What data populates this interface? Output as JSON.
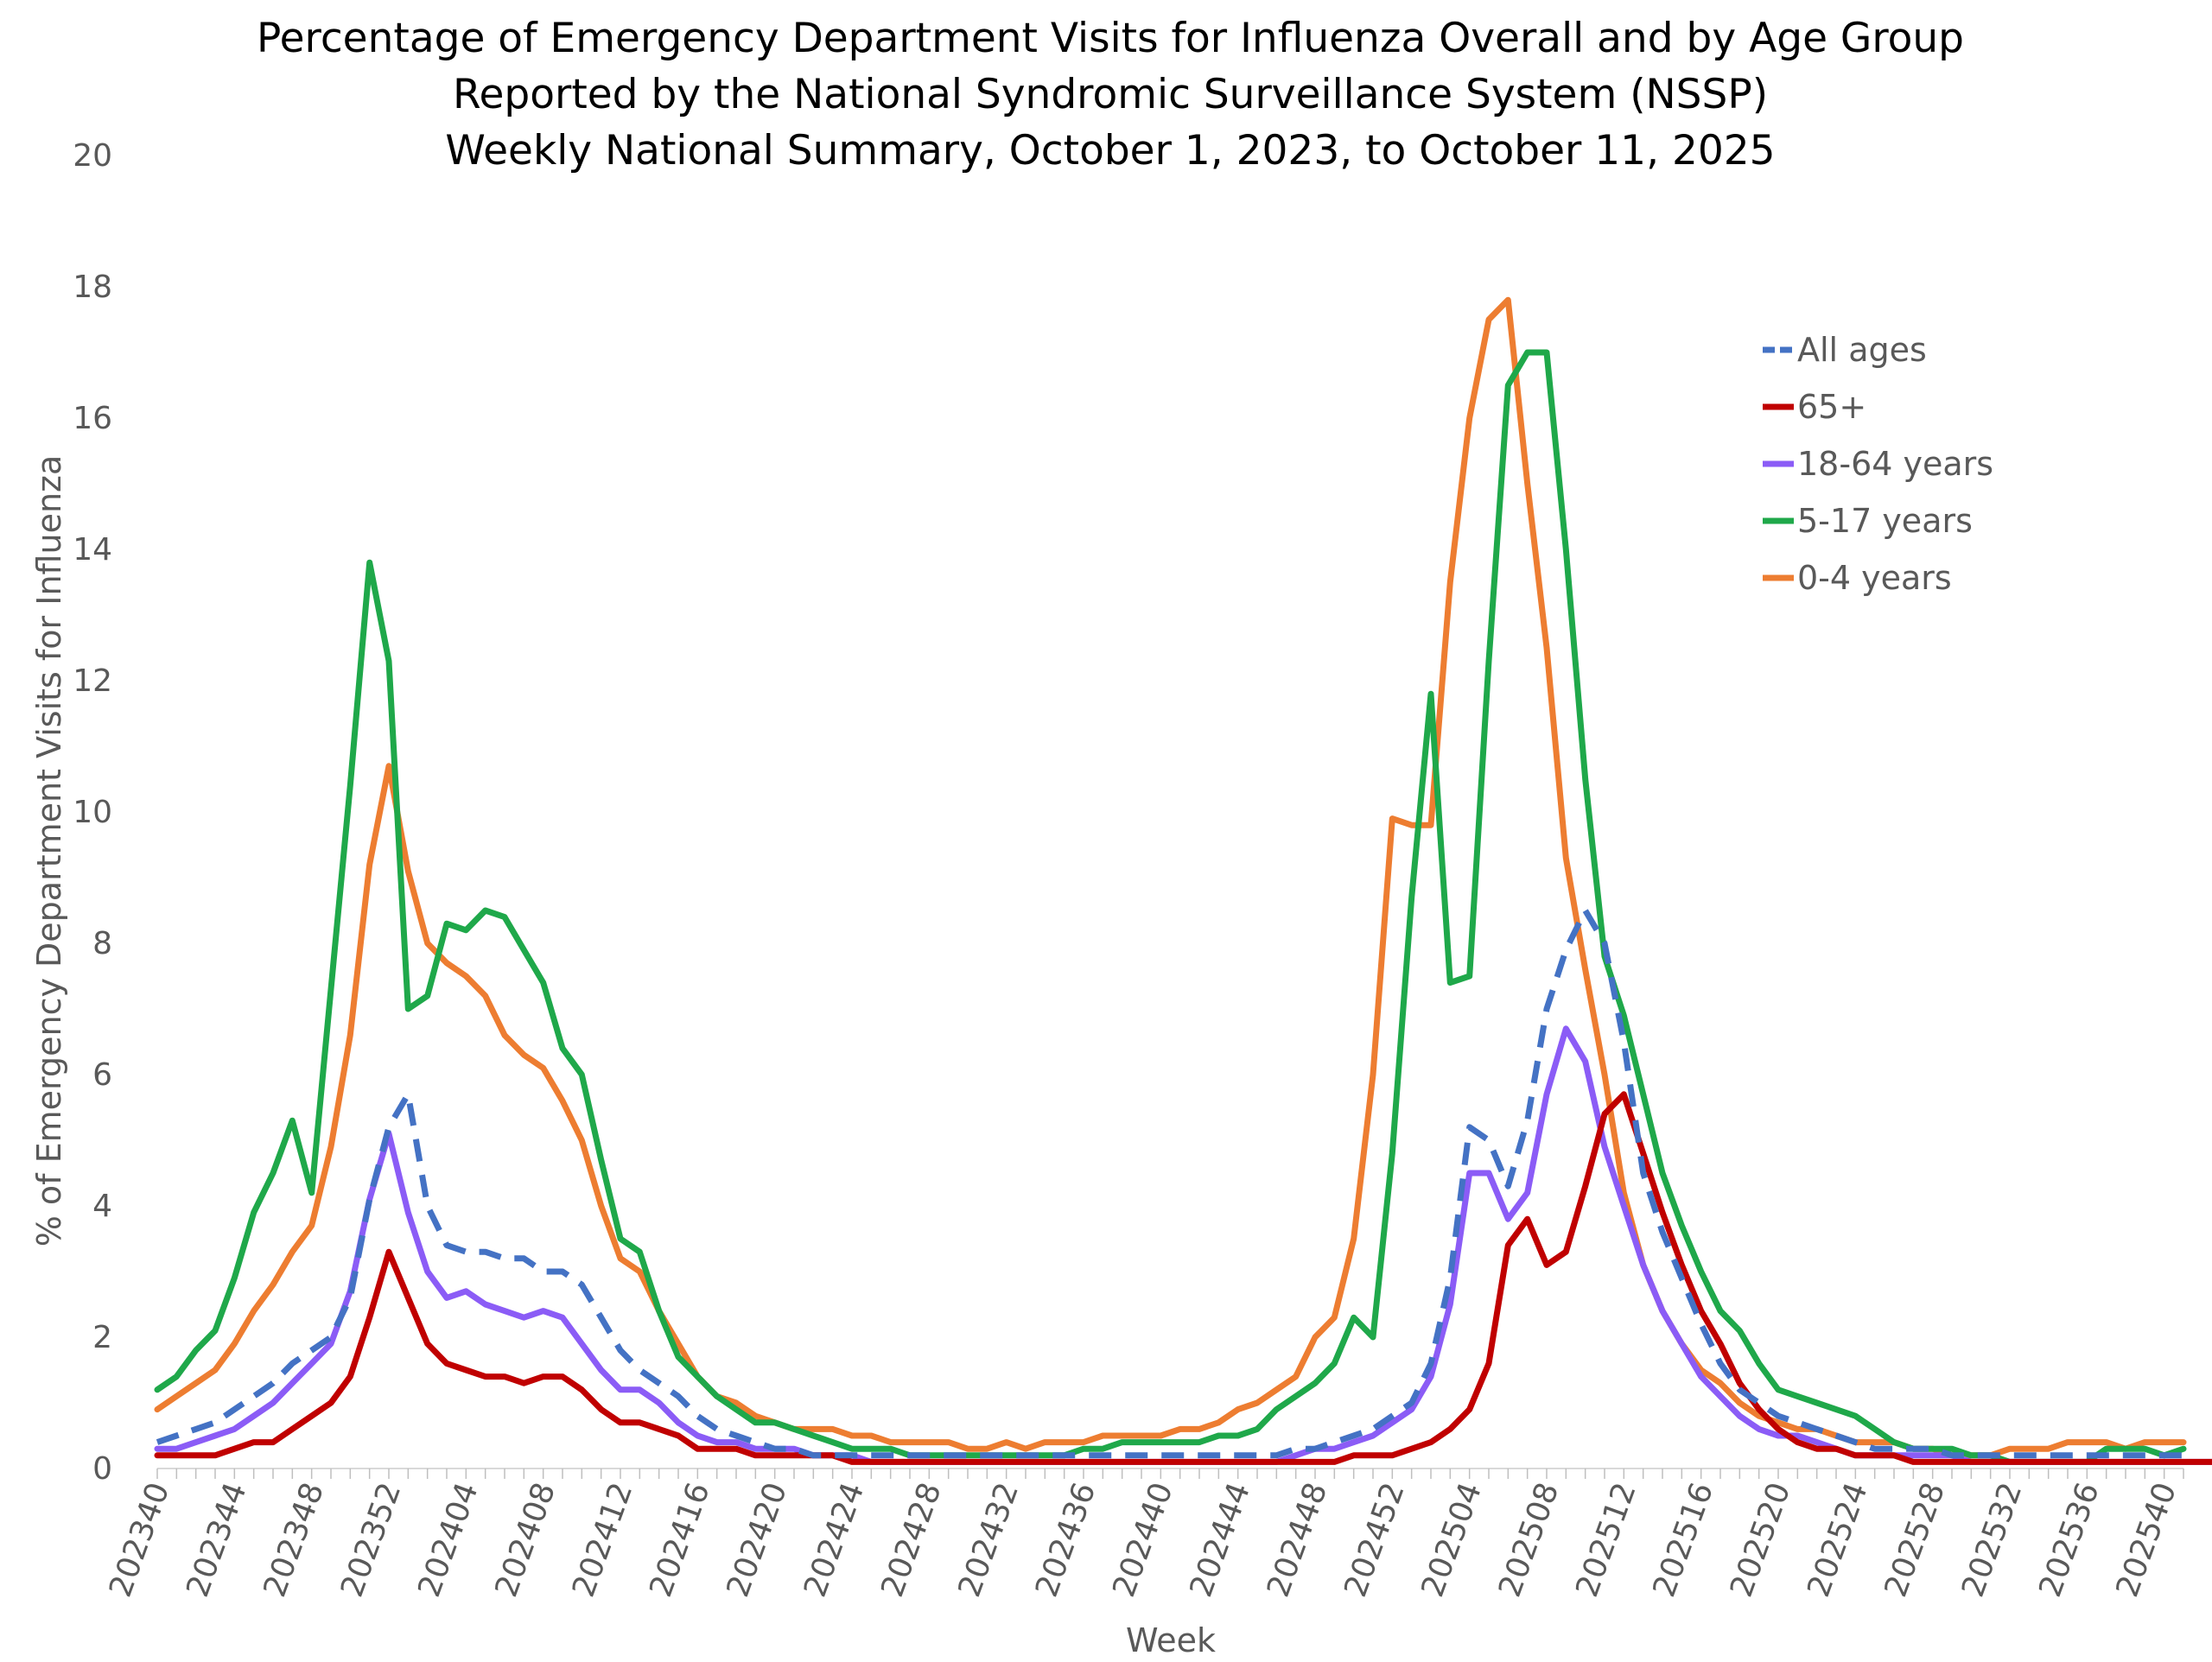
{
  "chart_data": {
    "type": "line",
    "title": [
      "Percentage of Emergency Department Visits for Influenza Overall and by Age Group",
      "Reported by the National Syndromic Surveillance System (NSSP)",
      "Weekly National Summary, October 1, 2023, to  October 11, 2025"
    ],
    "xlabel": "Week",
    "ylabel": "% of Emergency Department Visits for Influenza",
    "ylim": [
      0,
      20
    ],
    "yticks": [
      0,
      2,
      4,
      6,
      8,
      10,
      12,
      14,
      16,
      18,
      20
    ],
    "xtick_labels": [
      "202340",
      "202344",
      "202348",
      "202352",
      "202404",
      "202408",
      "202412",
      "202416",
      "202420",
      "202424",
      "202428",
      "202432",
      "202436",
      "202440",
      "202444",
      "202448",
      "202452",
      "202504",
      "202508",
      "202512",
      "202516",
      "202520",
      "202524",
      "202528",
      "202532",
      "202536",
      "202540"
    ],
    "legend_position": "top-right",
    "x_count": 106,
    "series": [
      {
        "name": "All ages",
        "color": "#4472C4",
        "dashed": true,
        "values": [
          0.4,
          0.5,
          0.6,
          0.7,
          0.9,
          1.1,
          1.3,
          1.6,
          1.8,
          2.0,
          2.6,
          4.1,
          5.2,
          5.7,
          4.0,
          3.4,
          3.3,
          3.3,
          3.2,
          3.2,
          3.0,
          3.0,
          2.8,
          2.3,
          1.8,
          1.5,
          1.3,
          1.1,
          0.8,
          0.6,
          0.5,
          0.4,
          0.3,
          0.3,
          0.2,
          0.2,
          0.2,
          0.2,
          0.2,
          0.2,
          0.2,
          0.2,
          0.2,
          0.2,
          0.2,
          0.2,
          0.2,
          0.2,
          0.2,
          0.2,
          0.2,
          0.2,
          0.2,
          0.2,
          0.2,
          0.2,
          0.2,
          0.2,
          0.2,
          0.3,
          0.3,
          0.4,
          0.5,
          0.6,
          0.8,
          1.0,
          1.6,
          2.9,
          5.2,
          5.0,
          4.3,
          5.3,
          7.0,
          7.9,
          8.5,
          8.0,
          6.5,
          4.5,
          3.6,
          2.9,
          2.2,
          1.6,
          1.2,
          1.0,
          0.8,
          0.7,
          0.6,
          0.5,
          0.4,
          0.3,
          0.3,
          0.3,
          0.3,
          0.2,
          0.2,
          0.2,
          0.2,
          0.2,
          0.2,
          0.2,
          0.2,
          0.2,
          0.2,
          0.2,
          0.2,
          0.2
        ]
      },
      {
        "name": "65+",
        "color": "#C00000",
        "dashed": false,
        "values": [
          0.2,
          0.2,
          0.2,
          0.2,
          0.3,
          0.4,
          0.4,
          0.6,
          0.8,
          1.0,
          1.4,
          2.3,
          3.3,
          2.6,
          1.9,
          1.6,
          1.5,
          1.4,
          1.4,
          1.3,
          1.4,
          1.4,
          1.2,
          0.9,
          0.7,
          0.7,
          0.6,
          0.5,
          0.3,
          0.3,
          0.3,
          0.2,
          0.2,
          0.2,
          0.2,
          0.2,
          0.1,
          0.1,
          0.1,
          0.1,
          0.1,
          0.1,
          0.1,
          0.1,
          0.1,
          0.1,
          0.1,
          0.1,
          0.1,
          0.1,
          0.1,
          0.1,
          0.1,
          0.1,
          0.1,
          0.1,
          0.1,
          0.1,
          0.1,
          0.1,
          0.1,
          0.1,
          0.2,
          0.2,
          0.2,
          0.3,
          0.4,
          0.6,
          0.9,
          1.6,
          3.4,
          3.8,
          3.1,
          3.3,
          4.3,
          5.4,
          5.7,
          4.8,
          3.9,
          3.1,
          2.4,
          1.9,
          1.3,
          0.9,
          0.6,
          0.4,
          0.3,
          0.3,
          0.2,
          0.2,
          0.2,
          0.1,
          0.1,
          0.1,
          0.1,
          0.1,
          0.1,
          0.1,
          0.1,
          0.1,
          0.1,
          0.1,
          0.1,
          0.1,
          0.1,
          0.1,
          0.1,
          0.1
        ]
      },
      {
        "name": "18-64 years",
        "color": "#8B5CF6",
        "dashed": false,
        "values": [
          0.3,
          0.3,
          0.4,
          0.5,
          0.6,
          0.8,
          1.0,
          1.3,
          1.6,
          1.9,
          2.7,
          4.1,
          5.1,
          3.9,
          3.0,
          2.6,
          2.7,
          2.5,
          2.4,
          2.3,
          2.4,
          2.3,
          1.9,
          1.5,
          1.2,
          1.2,
          1.0,
          0.7,
          0.5,
          0.4,
          0.4,
          0.3,
          0.3,
          0.3,
          0.2,
          0.2,
          0.2,
          0.1,
          0.1,
          0.1,
          0.1,
          0.1,
          0.1,
          0.1,
          0.1,
          0.1,
          0.1,
          0.1,
          0.1,
          0.1,
          0.1,
          0.1,
          0.1,
          0.1,
          0.1,
          0.1,
          0.1,
          0.1,
          0.1,
          0.2,
          0.3,
          0.3,
          0.4,
          0.5,
          0.7,
          0.9,
          1.4,
          2.5,
          4.5,
          4.5,
          3.8,
          4.2,
          5.7,
          6.7,
          6.2,
          4.9,
          4.0,
          3.1,
          2.4,
          1.9,
          1.4,
          1.1,
          0.8,
          0.6,
          0.5,
          0.5,
          0.4,
          0.3,
          0.2,
          0.2,
          0.2,
          0.2,
          0.2,
          0.2,
          0.1,
          0.1,
          0.1,
          0.1,
          0.1,
          0.1,
          0.1,
          0.1,
          0.1,
          0.1,
          0.1,
          0.1,
          0.1,
          0.1
        ]
      },
      {
        "name": "5-17 years",
        "color": "#1FA84A",
        "dashed": false,
        "values": [
          1.2,
          1.4,
          1.8,
          2.1,
          2.9,
          3.9,
          4.5,
          5.3,
          4.2,
          7.3,
          10.4,
          13.8,
          12.3,
          7.0,
          7.2,
          8.3,
          8.2,
          8.5,
          8.4,
          7.9,
          7.4,
          6.4,
          6.0,
          4.7,
          3.5,
          3.3,
          2.4,
          1.7,
          1.4,
          1.1,
          0.9,
          0.7,
          0.7,
          0.6,
          0.5,
          0.4,
          0.3,
          0.3,
          0.3,
          0.2,
          0.2,
          0.2,
          0.2,
          0.2,
          0.2,
          0.2,
          0.2,
          0.2,
          0.3,
          0.3,
          0.4,
          0.4,
          0.4,
          0.4,
          0.4,
          0.5,
          0.5,
          0.6,
          0.9,
          1.1,
          1.3,
          1.6,
          2.3,
          2.0,
          4.8,
          8.7,
          11.8,
          7.4,
          7.5,
          12.3,
          16.5,
          17.0,
          17.0,
          14.0,
          10.5,
          7.8,
          6.9,
          5.7,
          4.5,
          3.7,
          3.0,
          2.4,
          2.1,
          1.6,
          1.2,
          1.1,
          1.0,
          0.9,
          0.8,
          0.6,
          0.4,
          0.3,
          0.3,
          0.3,
          0.2,
          0.2,
          0.1,
          0.1,
          0.1,
          0.1,
          0.1,
          0.3,
          0.3,
          0.3,
          0.2,
          0.3
        ]
      },
      {
        "name": "0-4 years",
        "color": "#ED7D31",
        "dashed": false,
        "values": [
          0.9,
          1.1,
          1.3,
          1.5,
          1.9,
          2.4,
          2.8,
          3.3,
          3.7,
          4.9,
          6.6,
          9.2,
          10.7,
          9.1,
          8.0,
          7.7,
          7.5,
          7.2,
          6.6,
          6.3,
          6.1,
          5.6,
          5.0,
          4.0,
          3.2,
          3.0,
          2.4,
          1.9,
          1.4,
          1.1,
          1.0,
          0.8,
          0.7,
          0.6,
          0.6,
          0.6,
          0.5,
          0.5,
          0.4,
          0.4,
          0.4,
          0.4,
          0.3,
          0.3,
          0.4,
          0.3,
          0.4,
          0.4,
          0.4,
          0.5,
          0.5,
          0.5,
          0.5,
          0.6,
          0.6,
          0.7,
          0.9,
          1.0,
          1.2,
          1.4,
          2.0,
          2.3,
          3.5,
          6.0,
          9.9,
          9.8,
          9.8,
          13.5,
          16.0,
          17.5,
          17.8,
          15.0,
          12.5,
          9.3,
          7.6,
          6.0,
          4.2,
          3.1,
          2.4,
          1.9,
          1.5,
          1.3,
          1.0,
          0.8,
          0.7,
          0.6,
          0.6,
          0.5,
          0.4,
          0.4,
          0.4,
          0.3,
          0.3,
          0.2,
          0.2,
          0.2,
          0.3,
          0.3,
          0.3,
          0.4,
          0.4,
          0.4,
          0.3,
          0.4,
          0.4,
          0.4
        ]
      }
    ]
  }
}
